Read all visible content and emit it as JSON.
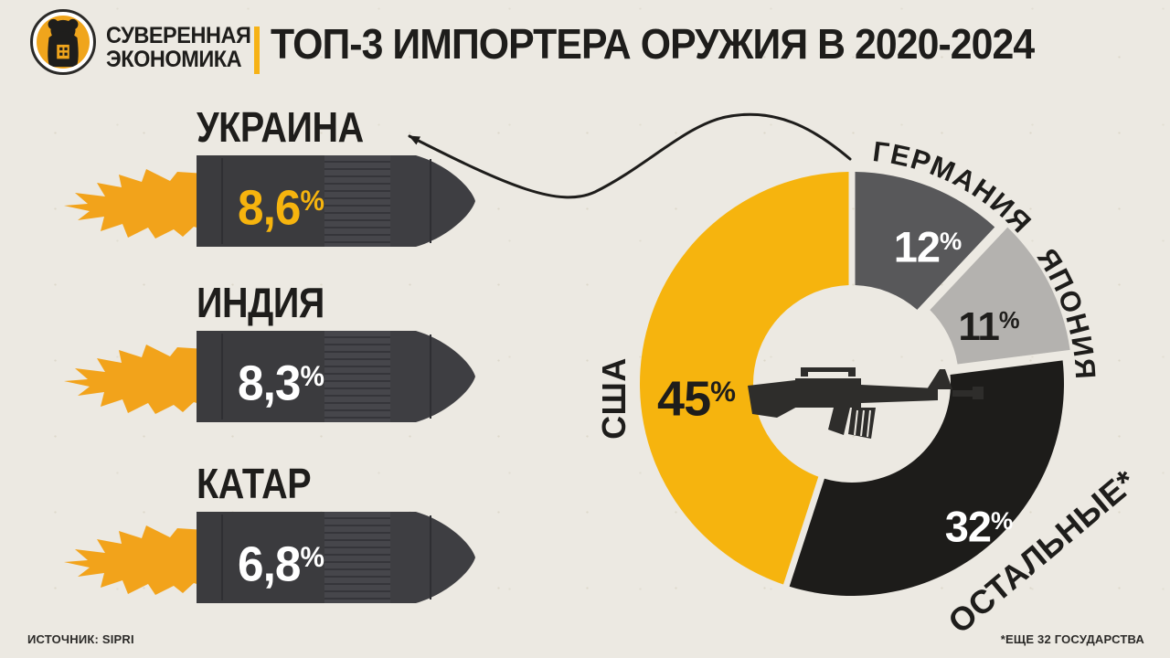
{
  "header": {
    "logo": {
      "badge_icon": "bear-icon",
      "line1": "СУВЕРЕННАЯ",
      "line2": "ЭКОНОМИКА"
    },
    "title": "ТОП-3 ИМПОРТЕРА ОРУЖИЯ В 2020-2024"
  },
  "chart_data": [
    {
      "type": "bar",
      "style": "bullet-shaped-bars-with-flame",
      "categories": [
        "УКРАИНА",
        "ИНДИЯ",
        "КАТАР"
      ],
      "values": [
        8.6,
        8.3,
        6.8
      ],
      "bars": [
        {
          "country": "УКРАИНА",
          "value": 8.6,
          "value_text": "8,6",
          "pct": "%",
          "value_color": "#F6B40E"
        },
        {
          "country": "ИНДИЯ",
          "value": 8.3,
          "value_text": "8,3",
          "pct": "%",
          "value_color": "#FFFFFF"
        },
        {
          "country": "КАТАР",
          "value": 6.8,
          "value_text": "6,8",
          "pct": "%",
          "value_color": "#FFFFFF"
        }
      ],
      "annotation_arrow_target": "УКРАИНА"
    },
    {
      "type": "pie",
      "subtype": "donut",
      "unit": "percent",
      "start_angle_deg": 0,
      "direction": "clockwise",
      "center_icon": "rifle-icon",
      "slices": [
        {
          "label": "ГЕРМАНИЯ",
          "value": 12,
          "value_text": "12",
          "pct": "%",
          "color": "#58585A",
          "value_color": "#FFFFFF",
          "exploded": false
        },
        {
          "label": "ЯПОНИЯ",
          "value": 11,
          "value_text": "11",
          "pct": "%",
          "color": "#B4B2AF",
          "value_color": "#1E1D1B",
          "exploded": true
        },
        {
          "label": "ОСТАЛЬНЫЕ*",
          "value": 32,
          "value_text": "32",
          "pct": "%",
          "color": "#1D1C1A",
          "value_color": "#FFFFFF",
          "exploded": false
        },
        {
          "label": "США",
          "value": 45,
          "value_text": "45",
          "pct": "%",
          "color": "#F6B40E",
          "value_color": "#1E1D1B",
          "exploded": false
        }
      ]
    }
  ],
  "footer": {
    "source": "ИСТОЧНИК: SIPRI",
    "note": "*ЕЩЕ 32 ГОСУДАРСТВА"
  },
  "colors": {
    "background": "#ECE9E2",
    "accent_yellow": "#F6B40E",
    "flame_orange": "#F2A31B",
    "bullet_body": "#3B3B3E",
    "ink": "#1E1D1B"
  }
}
